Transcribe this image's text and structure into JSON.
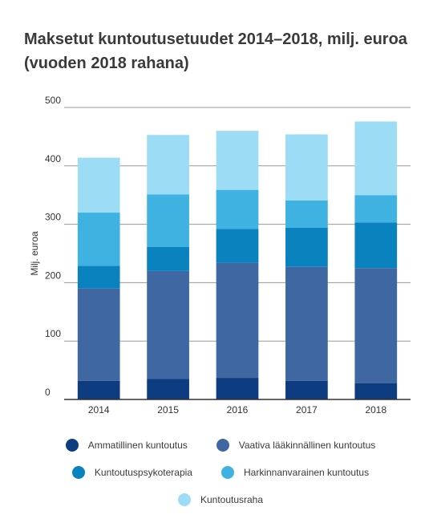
{
  "title": "Maksetut kuntoutusetuudet 2014–2018, milj. euroa (vuoden 2018 rahana)",
  "chart_data": {
    "type": "bar",
    "stacked": true,
    "categories": [
      "2014",
      "2015",
      "2016",
      "2017",
      "2018"
    ],
    "series": [
      {
        "name": "Ammatillinen kuntoutus",
        "color": "#0d3d80",
        "values": [
          32,
          35,
          37,
          32,
          28
        ]
      },
      {
        "name": "Vaativa lääkinnällinen kuntoutus",
        "color": "#3f68a3",
        "values": [
          158,
          185,
          197,
          195,
          197
        ]
      },
      {
        "name": "Kuntoutuspsykoterapia",
        "color": "#0a82be",
        "values": [
          39,
          41,
          58,
          67,
          78
        ]
      },
      {
        "name": "Harkinnanvarainen kuntoutus",
        "color": "#3fb2e2",
        "values": [
          91,
          90,
          67,
          47,
          47
        ]
      },
      {
        "name": "Kuntoutusraha",
        "color": "#9ddcf5",
        "values": [
          94,
          102,
          101,
          113,
          126
        ]
      }
    ],
    "ylabel": "Milj. euroa",
    "xlabel": "",
    "ylim": [
      0,
      500
    ],
    "yticks": [
      0,
      100,
      200,
      300,
      400,
      500
    ],
    "grid": true,
    "legend_position": "bottom"
  }
}
